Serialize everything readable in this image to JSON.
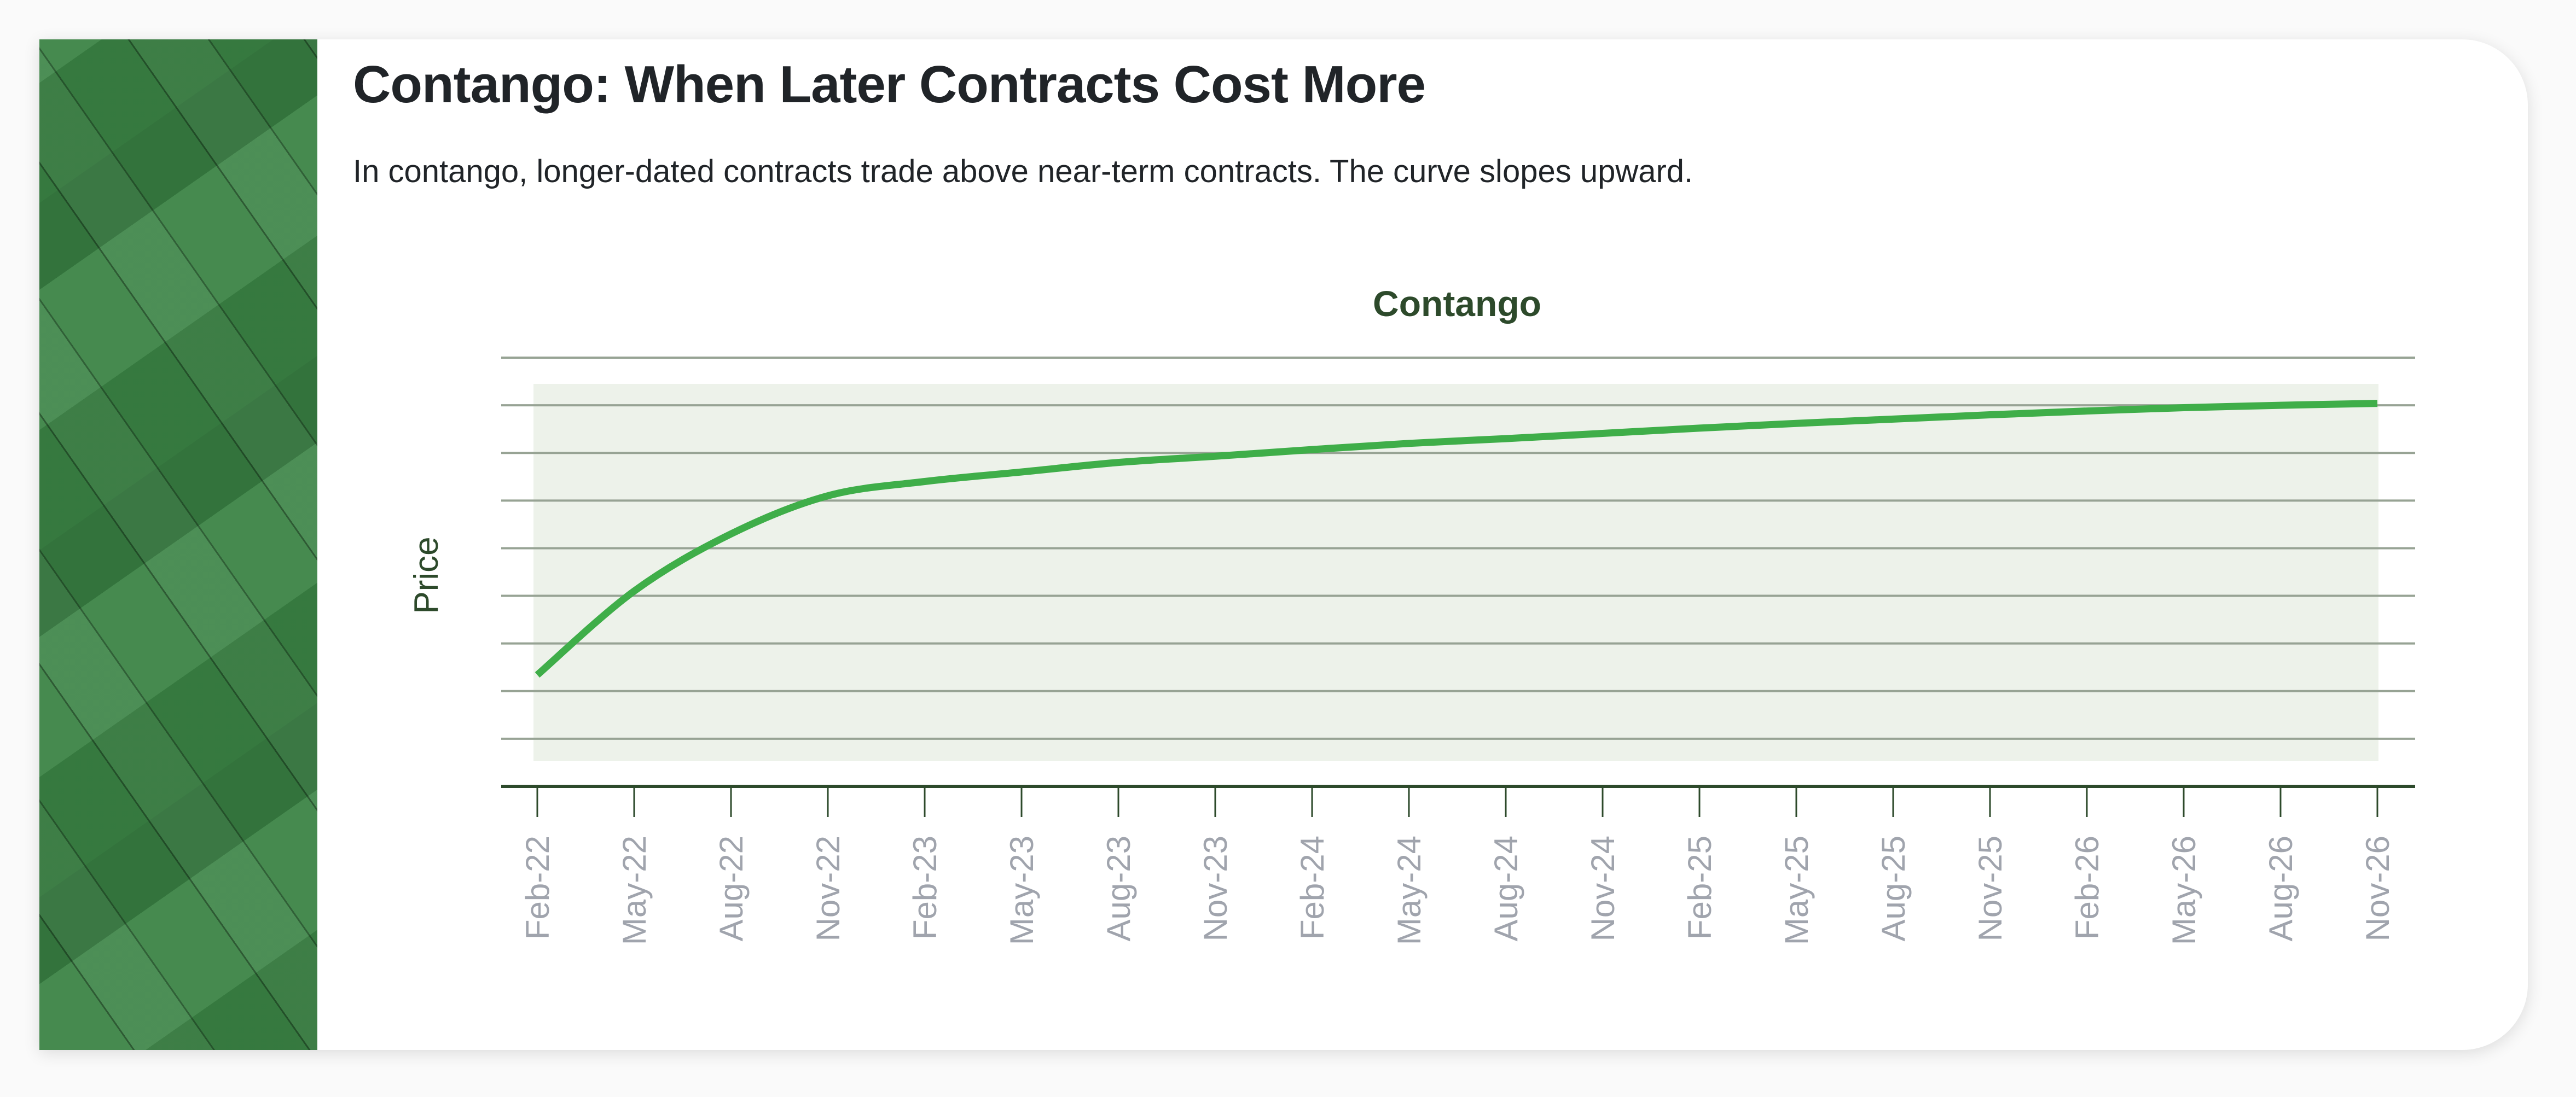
{
  "header": {
    "title": "Contango: When Later Contracts Cost More",
    "subtitle": "In contango, longer-dated contracts trade above near-term contracts. The curve slopes upward."
  },
  "colors": {
    "line": "#3fae49",
    "plot_bg": "#edf2ea",
    "grid": "#97a394",
    "axis": "#2d4a2b",
    "title": "#2d4a2b",
    "tick_label": "#a0a4ad"
  },
  "chart_data": {
    "type": "line",
    "title": "Contango",
    "xlabel": "",
    "ylabel": "Price",
    "ylim": [
      0,
      9
    ],
    "grid": true,
    "y_tick_labels": false,
    "categories": [
      "Feb-22",
      "May-22",
      "Aug-22",
      "Nov-22",
      "Feb-23",
      "May-23",
      "Aug-23",
      "Nov-23",
      "Feb-24",
      "May-24",
      "Aug-24",
      "Nov-24",
      "Feb-25",
      "May-25",
      "Aug-25",
      "Nov-25",
      "Feb-26",
      "May-26",
      "Aug-26",
      "Nov-26"
    ],
    "values": [
      2.34,
      4.1,
      5.3,
      6.1,
      6.4,
      6.6,
      6.8,
      6.93,
      7.07,
      7.2,
      7.3,
      7.41,
      7.52,
      7.62,
      7.71,
      7.8,
      7.88,
      7.95,
      8.0,
      8.04
    ]
  }
}
